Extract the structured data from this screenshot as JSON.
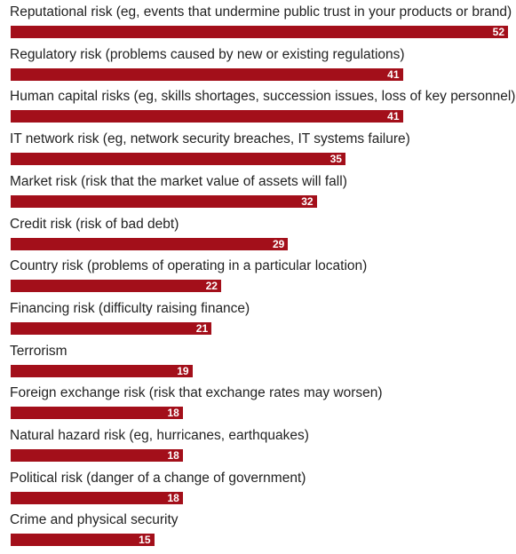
{
  "chart_data": {
    "type": "bar",
    "orientation": "horizontal",
    "categories": [
      "Reputational risk (eg, events that undermine public trust in your products or brand)",
      "Regulatory risk (problems caused by new or existing regulations)",
      "Human capital risks (eg, skills shortages, succession issues, loss of key personnel)",
      "IT network risk (eg, network security breaches, IT systems failure)",
      "Market risk (risk that the market value of assets will fall)",
      "Credit risk (risk of bad debt)",
      "Country risk (problems of operating in a particular location)",
      "Financing risk (difficulty raising finance)",
      "Terrorism",
      "Foreign exchange risk (risk that exchange rates may worsen)",
      "Natural hazard risk (eg, hurricanes, earthquakes)",
      "Political risk (danger of a change of government)",
      "Crime and physical security"
    ],
    "values": [
      52,
      41,
      41,
      35,
      32,
      29,
      22,
      21,
      19,
      18,
      18,
      18,
      15
    ],
    "xlim": [
      0,
      52
    ],
    "bar_color": "#a30f1a",
    "value_label_color": "#ffffff",
    "grid": false,
    "legend": "none"
  }
}
